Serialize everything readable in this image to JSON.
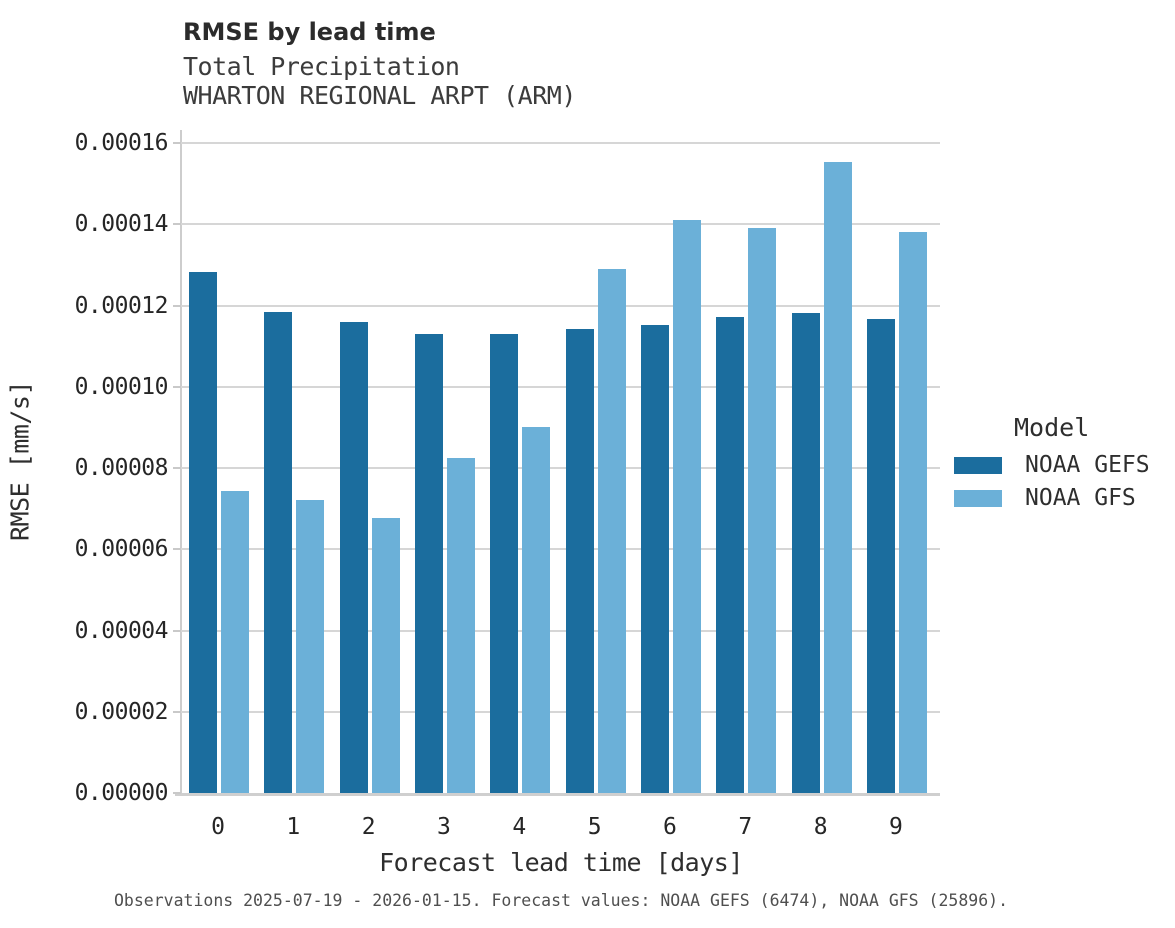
{
  "chart_data": {
    "type": "bar",
    "title": "RMSE by lead time",
    "subtitle": [
      "Total Precipitation",
      "WHARTON REGIONAL ARPT (ARM)"
    ],
    "xlabel": "Forecast lead time [days]",
    "ylabel": "RMSE [mm/s]",
    "categories": [
      "0",
      "1",
      "2",
      "3",
      "4",
      "5",
      "6",
      "7",
      "8",
      "9"
    ],
    "series": [
      {
        "name": "NOAA GEFS",
        "color": "#1b6d9e",
        "values": [
          0.0001282,
          0.0001184,
          0.0001159,
          0.0001131,
          0.0001129,
          0.0001142,
          0.0001152,
          0.0001172,
          0.0001182,
          0.0001166
        ]
      },
      {
        "name": "NOAA GFS",
        "color": "#6bb0d8",
        "values": [
          7.43e-05,
          7.22e-05,
          6.76e-05,
          8.24e-05,
          9e-05,
          0.0001291,
          0.000141,
          0.0001392,
          0.0001554,
          0.0001382
        ]
      }
    ],
    "ytick_values": [
      0.0,
      2e-05,
      4e-05,
      6e-05,
      8e-05,
      0.0001,
      0.00012,
      0.00014,
      0.00016
    ],
    "ytick_labels": [
      "0.00000",
      "0.00002",
      "0.00004",
      "0.00006",
      "0.00008",
      "0.00010",
      "0.00012",
      "0.00014",
      "0.00016"
    ],
    "ylim": [
      0,
      0.000163
    ],
    "grid": "horizontal",
    "gridline_color": "#d6d6d6",
    "legend_title": "Model",
    "legend_position": "right",
    "caption": "Observations 2025-07-19 - 2026-01-15. Forecast values: NOAA GEFS (6474), NOAA GFS (25896)."
  }
}
